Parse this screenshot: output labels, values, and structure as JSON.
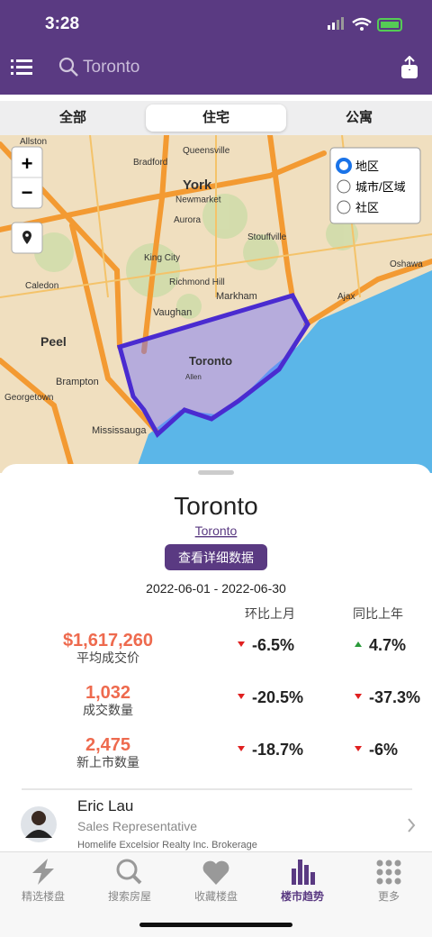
{
  "status": {
    "time": "3:28"
  },
  "header": {
    "search": "Toronto"
  },
  "tabs": [
    "全部",
    "住宅",
    "公寓"
  ],
  "map": {
    "zoom_in": "+",
    "zoom_out": "−",
    "layers": [
      "地区",
      "城市/区域",
      "社区"
    ],
    "labels": [
      "Allston",
      "Bradford",
      "Queensville",
      "York",
      "Newmarket",
      "Aurora",
      "King City",
      "Richmond Hill",
      "Stouffville",
      "Caledon",
      "Markham",
      "Vaughan",
      "Ajax",
      "Oshawa",
      "Peel",
      "Brampton",
      "Toronto",
      "Allen",
      "Georgetown",
      "Mississauga"
    ]
  },
  "card": {
    "title": "Toronto",
    "link": "Toronto",
    "button": "查看详细数据",
    "date_range": "2022-06-01 - 2022-06-30",
    "headers": [
      "环比上月",
      "同比上年"
    ],
    "rows": [
      [
        "$1,617,260",
        "平均成交价",
        "-6.5%",
        "4.7%"
      ],
      [
        "1,032",
        "成交数量",
        "-20.5%",
        "-37.3%"
      ],
      [
        "2,475",
        "新上市数量",
        "-18.7%",
        "-6%"
      ]
    ]
  },
  "agent": {
    "name": "Eric Lau",
    "title": "Sales Representative",
    "company": "Homelife Excelsior Realty Inc. Brokerage"
  },
  "nav": [
    "精选楼盘",
    "搜索房屋",
    "收藏楼盘",
    "楼市趋势",
    "更多"
  ]
}
